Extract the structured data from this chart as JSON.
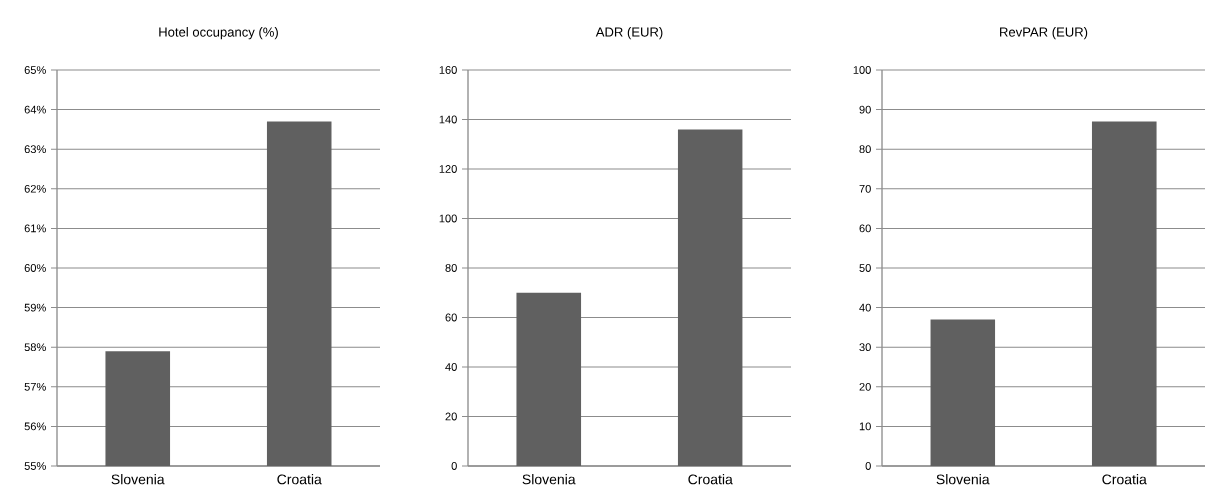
{
  "chart_data": [
    {
      "type": "bar",
      "title": "Hotel occupancy (%)",
      "categories": [
        "Slovenia",
        "Croatia"
      ],
      "values": [
        57.9,
        63.7
      ],
      "color": "#606060",
      "ylim": [
        55,
        65
      ],
      "yticks": [
        {
          "value": 55,
          "label": "55%"
        },
        {
          "value": 56,
          "label": "56%"
        },
        {
          "value": 57,
          "label": "57%"
        },
        {
          "value": 58,
          "label": "58%"
        },
        {
          "value": 59,
          "label": "59%"
        },
        {
          "value": 60,
          "label": "60%"
        },
        {
          "value": 61,
          "label": "61%"
        },
        {
          "value": 62,
          "label": "62%"
        },
        {
          "value": 63,
          "label": "63%"
        },
        {
          "value": 64,
          "label": "64%"
        },
        {
          "value": 65,
          "label": "65%"
        }
      ],
      "grid": "y"
    },
    {
      "type": "bar",
      "title": "ADR (EUR)",
      "categories": [
        "Slovenia",
        "Croatia"
      ],
      "values": [
        70,
        136
      ],
      "color": "#606060",
      "ylim": [
        0,
        160
      ],
      "yticks": [
        0,
        20,
        40,
        60,
        80,
        100,
        120,
        140,
        160
      ],
      "grid": "y"
    },
    {
      "type": "bar",
      "title": "RevPAR (EUR)",
      "categories": [
        "Slovenia",
        "Croatia"
      ],
      "values": [
        37,
        87
      ],
      "color": "#606060",
      "ylim": [
        0,
        100
      ],
      "yticks": [
        0,
        10,
        20,
        30,
        40,
        50,
        60,
        70,
        80,
        90,
        100
      ],
      "grid": "y"
    }
  ]
}
